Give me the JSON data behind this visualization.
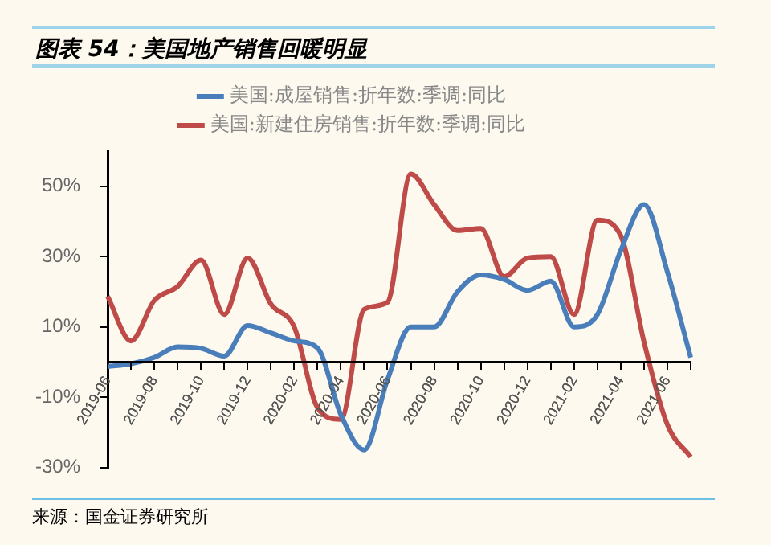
{
  "chart_data": {
    "type": "line",
    "title": "图表 54：美国地产销售回暖明显",
    "categories": [
      "2019-06",
      null,
      "2019-08",
      null,
      "2019-10",
      null,
      "2019-12",
      null,
      "2020-02",
      null,
      "2020-04",
      null,
      "2020-06",
      null,
      "2020-08",
      null,
      "2020-10",
      null,
      "2020-12",
      null,
      "2021-02",
      null,
      "2021-04",
      null,
      "2021-06",
      null
    ],
    "series": [
      {
        "name": "美国:成屋销售:折年数:季调:同比",
        "color": "#4a7ebb",
        "values": [
          -1.3,
          -0.5,
          1.3,
          4.3,
          3.9,
          1.7,
          10.4,
          8.3,
          6,
          4,
          -15,
          -25,
          -5,
          10,
          10,
          20,
          24.8,
          23.5,
          20.4,
          23,
          10,
          13.5,
          31.7,
          44.8,
          25.7,
          1.3
        ]
      },
      {
        "name": "美国:新建住房销售:折年数:季调:同比",
        "color": "#be4b48",
        "values": [
          18.7,
          6,
          17.5,
          21.5,
          29,
          13.5,
          29.6,
          16.5,
          10,
          -13,
          -16.3,
          15,
          17,
          53.5,
          44.8,
          37.4,
          38,
          24.3,
          29.6,
          30,
          13.5,
          40.4,
          36,
          5.7,
          -17.8,
          -27
        ]
      }
    ],
    "ylim": [
      -30,
      60
    ],
    "yticks": [
      {
        "value": -30,
        "label": "-30%"
      },
      {
        "value": -10,
        "label": "-10%"
      },
      {
        "value": 10,
        "label": "10%"
      },
      {
        "value": 30,
        "label": "30%"
      },
      {
        "value": 50,
        "label": "50%"
      }
    ],
    "grid": false,
    "legend": "top",
    "line_style": "solid",
    "marker": "none",
    "annotations": [
      "来源：国金证券研究所"
    ]
  }
}
